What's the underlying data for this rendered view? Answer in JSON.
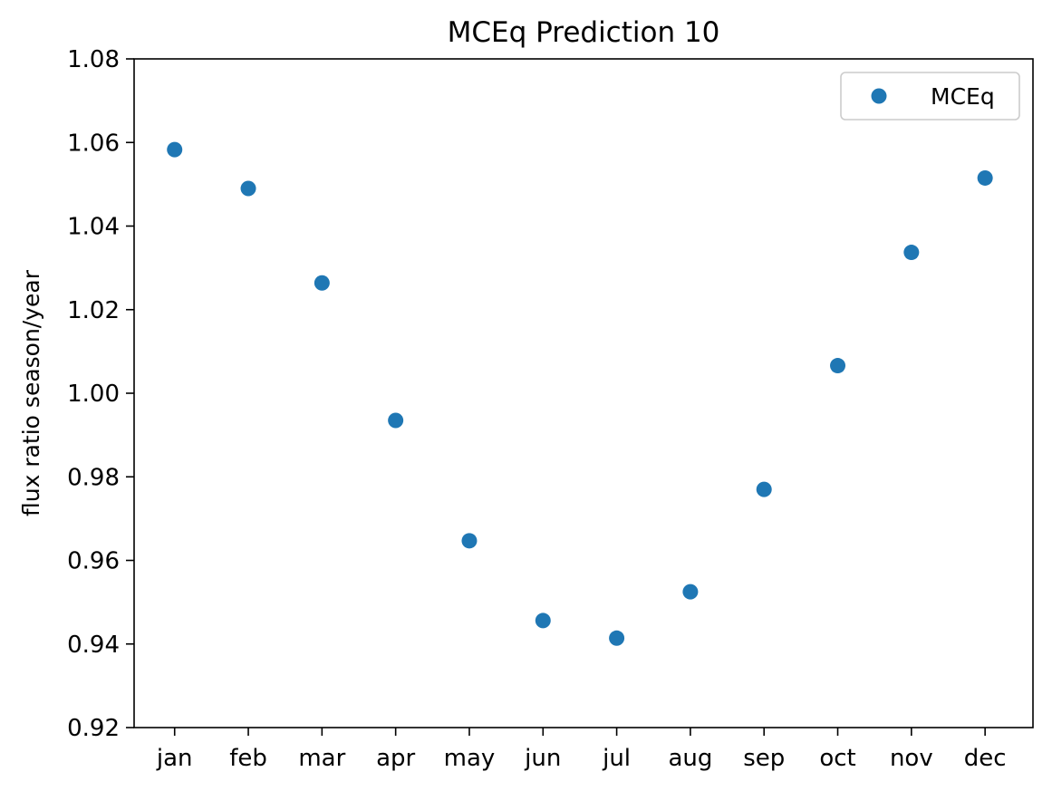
{
  "chart_data": {
    "type": "scatter",
    "title": "MCEq Prediction 10",
    "xlabel": "",
    "ylabel": "flux ratio season/year",
    "categories": [
      "jan",
      "feb",
      "mar",
      "apr",
      "may",
      "jun",
      "jul",
      "aug",
      "sep",
      "oct",
      "nov",
      "dec"
    ],
    "series": [
      {
        "name": "MCEq",
        "color": "#1f77b4",
        "marker": "circle",
        "values": [
          1.0583,
          1.049,
          1.0264,
          0.9935,
          0.9647,
          0.9456,
          0.9414,
          0.9525,
          0.977,
          1.0066,
          1.0337,
          1.0515
        ]
      }
    ],
    "ylim": [
      0.92,
      1.08
    ],
    "yticks": [
      "0.92",
      "0.94",
      "0.96",
      "0.98",
      "1.00",
      "1.02",
      "1.04",
      "1.06",
      "1.08"
    ],
    "grid": false,
    "legend_position": "top-right"
  }
}
